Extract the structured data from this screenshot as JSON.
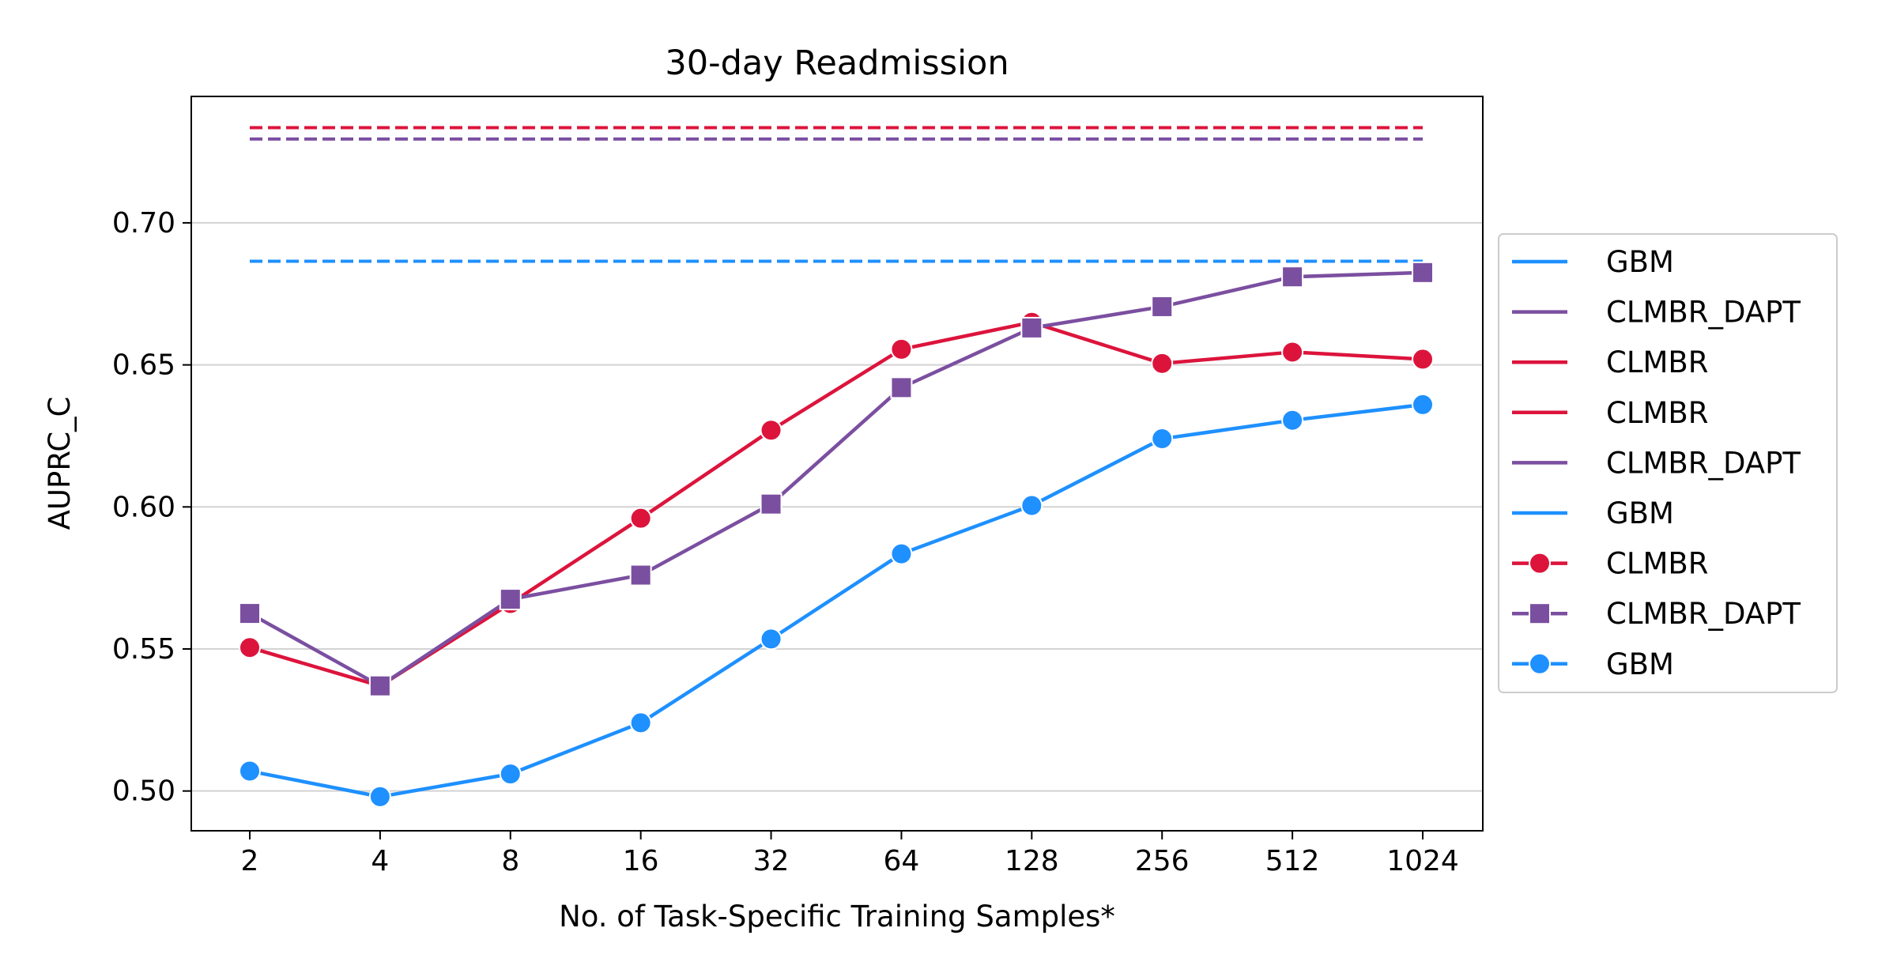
{
  "chart_data": {
    "type": "line",
    "title": "30-day Readmission",
    "xlabel": "No. of Task-Specific Training Samples*",
    "ylabel": "AUPRC_C",
    "categories": [
      "2",
      "4",
      "8",
      "16",
      "32",
      "64",
      "128",
      "256",
      "512",
      "1024"
    ],
    "ylim": [
      0.486,
      0.7445
    ],
    "yticks": [
      "0.50",
      "0.55",
      "0.60",
      "0.65",
      "0.70"
    ],
    "ytick_values": [
      0.5,
      0.55,
      0.6,
      0.65,
      0.7
    ],
    "grid": "horizontal",
    "legend_position": "right-outside",
    "baselines": [
      {
        "name": "GBM",
        "value": 0.6865,
        "color": "#1e90ff"
      },
      {
        "name": "CLMBR_DAPT",
        "value": 0.7295,
        "color": "#7b4fa0"
      },
      {
        "name": "CLMBR",
        "value": 0.7335,
        "color": "#dc143c"
      }
    ],
    "series": [
      {
        "name": "CLMBR",
        "marker": "circle",
        "color": "#dc143c",
        "values": [
          0.5505,
          0.537,
          0.566,
          0.596,
          0.627,
          0.6555,
          0.665,
          0.6505,
          0.6545,
          0.652
        ]
      },
      {
        "name": "CLMBR_DAPT",
        "marker": "square",
        "color": "#7b4fa0",
        "values": [
          0.5625,
          0.537,
          0.5675,
          0.576,
          0.601,
          0.642,
          0.663,
          0.6705,
          0.681,
          0.6825
        ]
      },
      {
        "name": "GBM",
        "marker": "circle",
        "color": "#1e90ff",
        "values": [
          0.507,
          0.498,
          0.506,
          0.524,
          0.5535,
          0.5835,
          0.6005,
          0.624,
          0.6305,
          0.636
        ]
      }
    ],
    "legend": [
      {
        "label": "GBM",
        "color": "#1e90ff",
        "marker": "none"
      },
      {
        "label": "CLMBR_DAPT",
        "color": "#7b4fa0",
        "marker": "none"
      },
      {
        "label": "CLMBR",
        "color": "#dc143c",
        "marker": "none"
      },
      {
        "label": "CLMBR",
        "color": "#dc143c",
        "marker": "none"
      },
      {
        "label": "CLMBR_DAPT",
        "color": "#7b4fa0",
        "marker": "none"
      },
      {
        "label": "GBM",
        "color": "#1e90ff",
        "marker": "none"
      },
      {
        "label": "CLMBR",
        "color": "#dc143c",
        "marker": "circle"
      },
      {
        "label": "CLMBR_DAPT",
        "color": "#7b4fa0",
        "marker": "square"
      },
      {
        "label": "GBM",
        "color": "#1e90ff",
        "marker": "circle"
      }
    ]
  }
}
